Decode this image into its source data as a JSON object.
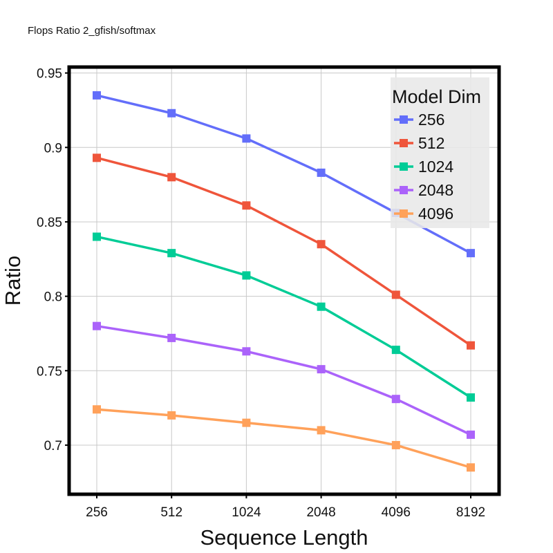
{
  "chart_data": {
    "type": "line",
    "title": "Flops Ratio 2_gfish/softmax",
    "xlabel": "Sequence Length",
    "ylabel": "Ratio",
    "categories": [
      "256",
      "512",
      "1024",
      "2048",
      "4096",
      "8192"
    ],
    "ylim": [
      0.667,
      0.954
    ],
    "yticks": [
      0.7,
      0.75,
      0.8,
      0.85,
      0.9,
      0.95
    ],
    "ytick_labels": [
      "0.7",
      "0.75",
      "0.8",
      "0.85",
      "0.9",
      "0.95"
    ],
    "grid": true,
    "legend": {
      "title": "Model Dim",
      "placement": "top-right"
    },
    "series": [
      {
        "name": "256",
        "color": "#636efa",
        "values": [
          0.935,
          0.923,
          0.906,
          0.883,
          0.856,
          0.829
        ]
      },
      {
        "name": "512",
        "color": "#ef553b",
        "values": [
          0.893,
          0.88,
          0.861,
          0.835,
          0.801,
          0.767
        ]
      },
      {
        "name": "1024",
        "color": "#00cc96",
        "values": [
          0.84,
          0.829,
          0.814,
          0.793,
          0.764,
          0.732
        ]
      },
      {
        "name": "2048",
        "color": "#ab63fa",
        "values": [
          0.78,
          0.772,
          0.763,
          0.751,
          0.731,
          0.707
        ]
      },
      {
        "name": "4096",
        "color": "#ffa15a",
        "values": [
          0.724,
          0.72,
          0.715,
          0.71,
          0.7,
          0.685
        ]
      }
    ]
  }
}
